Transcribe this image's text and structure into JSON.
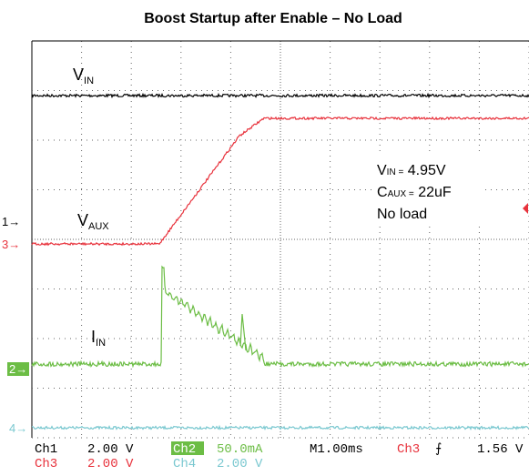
{
  "title": "Boost Startup after Enable – No Load",
  "trace_labels": {
    "vin": {
      "main": "V",
      "sub": "IN"
    },
    "vaux": {
      "main": "V",
      "sub": "AUX"
    },
    "iin": {
      "main": "I",
      "sub": "IN"
    }
  },
  "annotation": {
    "line1": {
      "main": "V",
      "sub": "IN =",
      "rest": " 4.95V"
    },
    "line2": {
      "main": "C",
      "sub": "AUX =",
      "rest": " 22uF"
    },
    "line3": "No load"
  },
  "channel_markers": {
    "ch1": "1→",
    "ch3": "3→",
    "ch2": "2→",
    "ch4": "4→"
  },
  "status": {
    "ch1": "Ch1",
    "ch1_scale": "2.00 V",
    "ch2": "Ch2",
    "ch2_scale": "50.0mA",
    "timebase": "M1.00ms",
    "trigger_ch": "Ch3",
    "trigger_slope": "⨍",
    "trigger_level": "1.56 V",
    "ch3": "Ch3",
    "ch3_scale": "2.00 V",
    "ch4": "Ch4",
    "ch4_scale": "2.00 V"
  }
}
